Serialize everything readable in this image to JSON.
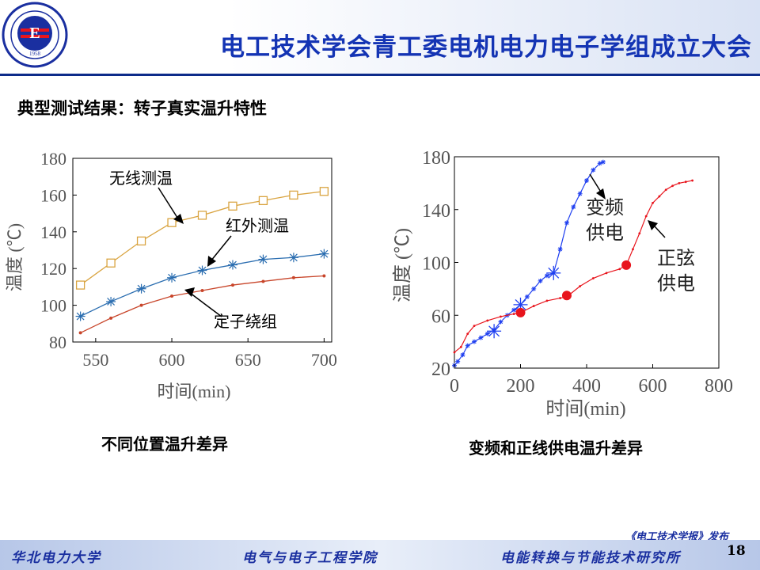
{
  "header": {
    "title": "电工技术学会青工委电机电力电子学组成立大会"
  },
  "logo": {
    "year": "1958",
    "ring_text": "NORTH CHINA ELECTRIC POWER UNIVERSITY"
  },
  "subtitle": "典型测试结果：转子真实温升特性",
  "captions": {
    "left": "不同位置温升差异",
    "right": "变频和正线供电温升差异"
  },
  "footer": {
    "university": "华北电力大学",
    "school": "电气与电子工程学院",
    "institute": "电能转换与节能技术研究所",
    "publisher": "《电工技术学报》发布",
    "page": "18"
  },
  "colors": {
    "title": "#1434b4",
    "orange": "#d9a441",
    "blue": "#2a6db0",
    "red": "#c8452a",
    "blue2": "#1f3ff0",
    "red2": "#e8141c"
  },
  "chart_data": [
    {
      "type": "line",
      "xlabel": "时间(min)",
      "ylabel": "温度 (℃)",
      "xlim": [
        535,
        705
      ],
      "ylim": [
        80,
        180
      ],
      "xticks": [
        550,
        600,
        650,
        700
      ],
      "yticks": [
        80,
        100,
        120,
        140,
        160,
        180
      ],
      "x": [
        540,
        560,
        580,
        600,
        620,
        640,
        660,
        680,
        700
      ],
      "series": [
        {
          "name": "无线测温",
          "marker": "square",
          "color": "#d9a441",
          "values": [
            111,
            123,
            135,
            145,
            149,
            154,
            157,
            160,
            162
          ]
        },
        {
          "name": "红外测温",
          "marker": "asterisk",
          "color": "#2a6db0",
          "values": [
            94,
            102,
            109,
            115,
            119,
            122,
            125,
            126,
            128
          ]
        },
        {
          "name": "定子绕组",
          "marker": "dot",
          "color": "#c8452a",
          "values": [
            85,
            93,
            100,
            105,
            108,
            111,
            113,
            115,
            116
          ]
        }
      ]
    },
    {
      "type": "line",
      "xlabel": "时间(min)",
      "ylabel": "温度 (℃)",
      "xlim": [
        0,
        800
      ],
      "ylim": [
        20,
        180
      ],
      "xticks": [
        0,
        200,
        400,
        600,
        800
      ],
      "yticks": [
        20,
        60,
        100,
        140,
        180
      ],
      "series": [
        {
          "name": "变频供电",
          "color": "#1f3ff0",
          "points": [
            [
              0,
              22
            ],
            [
              10,
              25
            ],
            [
              25,
              30
            ],
            [
              40,
              37
            ],
            [
              60,
              40
            ],
            [
              80,
              43
            ],
            [
              100,
              46
            ],
            [
              120,
              49
            ],
            [
              140,
              55
            ],
            [
              160,
              60
            ],
            [
              180,
              64
            ],
            [
              200,
              68
            ],
            [
              220,
              74
            ],
            [
              240,
              80
            ],
            [
              260,
              86
            ],
            [
              280,
              90
            ],
            [
              300,
              92
            ],
            [
              320,
              110
            ],
            [
              340,
              130
            ],
            [
              360,
              142
            ],
            [
              380,
              152
            ],
            [
              400,
              162
            ],
            [
              420,
              170
            ],
            [
              440,
              175
            ],
            [
              450,
              176
            ]
          ],
          "highlight": [
            [
              120,
              48
            ],
            [
              200,
              68
            ],
            [
              300,
              92
            ]
          ]
        },
        {
          "name": "正弦供电",
          "color": "#e8141c",
          "points": [
            [
              0,
              32
            ],
            [
              20,
              36
            ],
            [
              40,
              46
            ],
            [
              60,
              52
            ],
            [
              100,
              56
            ],
            [
              140,
              59
            ],
            [
              180,
              61
            ],
            [
              200,
              62
            ],
            [
              240,
              67
            ],
            [
              280,
              71
            ],
            [
              320,
              73
            ],
            [
              340,
              74
            ],
            [
              380,
              82
            ],
            [
              420,
              88
            ],
            [
              460,
              92
            ],
            [
              500,
              95
            ],
            [
              520,
              98
            ],
            [
              540,
              110
            ],
            [
              560,
              122
            ],
            [
              580,
              135
            ],
            [
              600,
              145
            ],
            [
              620,
              150
            ],
            [
              640,
              155
            ],
            [
              660,
              158
            ],
            [
              680,
              160
            ],
            [
              700,
              161
            ],
            [
              720,
              162
            ]
          ],
          "highlight": [
            [
              200,
              62
            ],
            [
              340,
              75
            ],
            [
              520,
              98
            ]
          ]
        }
      ]
    }
  ]
}
